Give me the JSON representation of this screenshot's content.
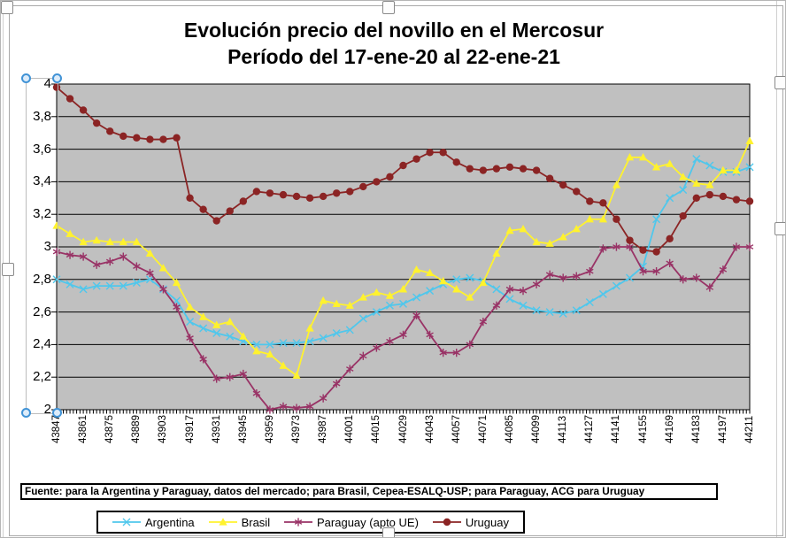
{
  "chart": {
    "title": "Evolución precio del novillo en el Mercosur",
    "subtitle": "Período del 17-ene-20 al 22-ene-21",
    "source_note": "Fuente: para la Argentina y Paraguay, datos del mercado; para Brasil, Cepea-ESALQ-USP; para Paraguay, ACG para Uruguay"
  },
  "chart_data": {
    "type": "line",
    "x": [
      43847,
      43854,
      43861,
      43868,
      43875,
      43882,
      43889,
      43896,
      43903,
      43910,
      43917,
      43924,
      43931,
      43938,
      43945,
      43952,
      43959,
      43966,
      43973,
      43980,
      43987,
      43994,
      44001,
      44008,
      44015,
      44022,
      44029,
      44036,
      44043,
      44050,
      44057,
      44064,
      44071,
      44078,
      44085,
      44092,
      44099,
      44106,
      44113,
      44120,
      44127,
      44134,
      44141,
      44148,
      44155,
      44162,
      44169,
      44176,
      44183,
      44190,
      44197,
      44204,
      44211
    ],
    "x_tick_labels": [
      "43847",
      "43861",
      "43875",
      "43889",
      "43903",
      "43917",
      "43931",
      "43945",
      "43959",
      "43973",
      "43987",
      "44001",
      "44015",
      "44029",
      "44043",
      "44057",
      "44071",
      "44085",
      "44099",
      "44113",
      "44127",
      "44141",
      "44155",
      "44169",
      "44183",
      "44197",
      "44211"
    ],
    "y_tick_labels": [
      "2",
      "2,2",
      "2,4",
      "2,6",
      "2,8",
      "3",
      "3,2",
      "3,4",
      "3,6",
      "3,8",
      "4"
    ],
    "ylim": [
      2,
      4
    ],
    "y_step": 0.2,
    "grid": true,
    "legend_position": "bottom",
    "plot_bg": "#C0C0C0",
    "gridline_color": "#000000",
    "series": [
      {
        "name": "Argentina",
        "color": "#4FC7EC",
        "marker": "x",
        "values": [
          2.8,
          2.77,
          2.74,
          2.76,
          2.76,
          2.76,
          2.78,
          2.8,
          2.74,
          2.67,
          2.54,
          2.5,
          2.47,
          2.45,
          2.42,
          2.4,
          2.4,
          2.41,
          2.41,
          2.42,
          2.44,
          2.47,
          2.49,
          2.56,
          2.6,
          2.64,
          2.65,
          2.69,
          2.73,
          2.77,
          2.8,
          2.81,
          2.79,
          2.74,
          2.68,
          2.64,
          2.61,
          2.6,
          2.59,
          2.61,
          2.66,
          2.71,
          2.76,
          2.81,
          2.88,
          3.17,
          3.3,
          3.35,
          3.54,
          3.5,
          3.46,
          3.46,
          3.49
        ]
      },
      {
        "name": "Brasil",
        "color": "#FFF22E",
        "marker": "triangle",
        "values": [
          3.13,
          3.08,
          3.03,
          3.04,
          3.03,
          3.03,
          3.03,
          2.96,
          2.87,
          2.78,
          2.63,
          2.57,
          2.52,
          2.54,
          2.45,
          2.36,
          2.34,
          2.27,
          2.21,
          2.5,
          2.67,
          2.65,
          2.64,
          2.69,
          2.72,
          2.7,
          2.74,
          2.86,
          2.84,
          2.79,
          2.74,
          2.69,
          2.78,
          2.96,
          3.1,
          3.11,
          3.03,
          3.02,
          3.06,
          3.11,
          3.17,
          3.17,
          3.38,
          3.55,
          3.55,
          3.49,
          3.51,
          3.43,
          3.39,
          3.38,
          3.47,
          3.47,
          3.65
        ]
      },
      {
        "name": "Paraguay (apto UE)",
        "color": "#993366",
        "marker": "asterisk",
        "values": [
          2.97,
          2.95,
          2.94,
          2.89,
          2.91,
          2.94,
          2.88,
          2.84,
          2.74,
          2.63,
          2.44,
          2.31,
          2.19,
          2.2,
          2.22,
          2.1,
          2.0,
          2.02,
          2.01,
          2.02,
          2.07,
          2.16,
          2.25,
          2.33,
          2.38,
          2.42,
          2.46,
          2.58,
          2.46,
          2.35,
          2.35,
          2.4,
          2.54,
          2.64,
          2.74,
          2.73,
          2.77,
          2.83,
          2.81,
          2.82,
          2.85,
          2.99,
          3.0,
          3.0,
          2.85,
          2.85,
          2.9,
          2.8,
          2.81,
          2.75,
          2.86,
          3.0,
          3.0
        ]
      },
      {
        "name": "Uruguay",
        "color": "#8B2424",
        "marker": "circle",
        "values": [
          3.98,
          3.91,
          3.84,
          3.76,
          3.71,
          3.68,
          3.67,
          3.66,
          3.66,
          3.67,
          3.3,
          3.23,
          3.16,
          3.22,
          3.28,
          3.34,
          3.33,
          3.32,
          3.31,
          3.3,
          3.31,
          3.33,
          3.34,
          3.37,
          3.4,
          3.43,
          3.5,
          3.54,
          3.58,
          3.58,
          3.52,
          3.48,
          3.47,
          3.48,
          3.49,
          3.48,
          3.47,
          3.42,
          3.38,
          3.34,
          3.28,
          3.27,
          3.17,
          3.04,
          2.98,
          2.97,
          3.05,
          3.19,
          3.3,
          3.32,
          3.31,
          3.29,
          3.28
        ]
      }
    ]
  }
}
